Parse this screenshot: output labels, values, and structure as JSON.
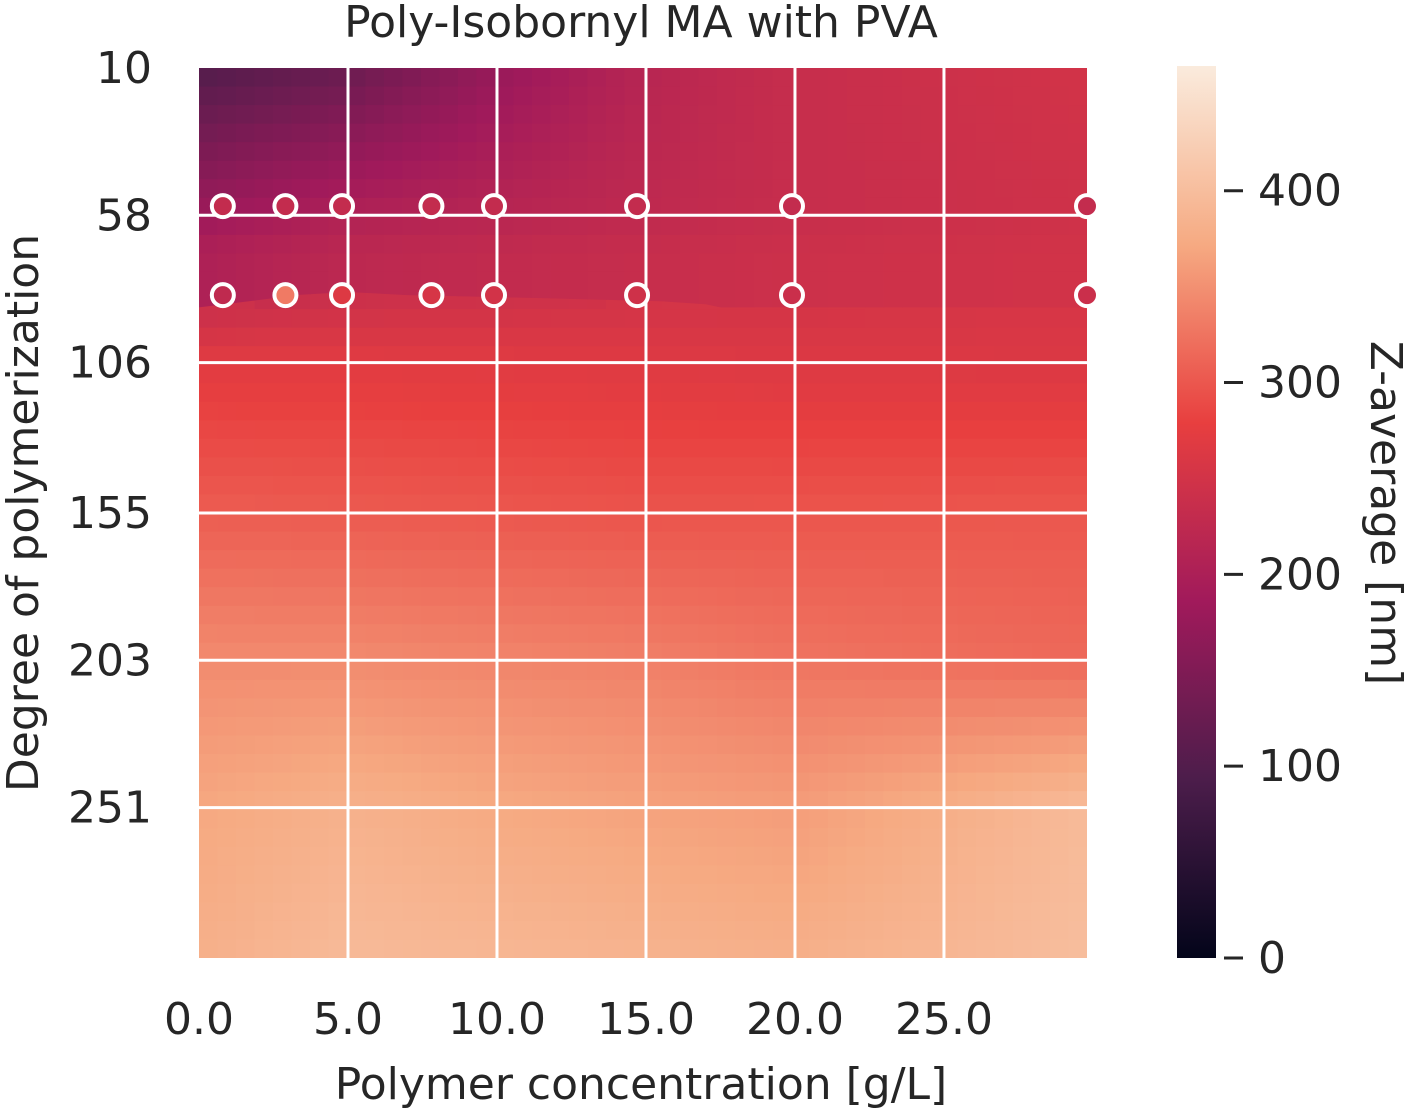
{
  "chart_data": {
    "type": "heatmap",
    "title": "Poly-Isobornyl MA with PVA",
    "xlabel": "Polymer concentration [g/L]",
    "ylabel": "Degree of polymerization",
    "xlim": [
      0,
      29.8
    ],
    "ylim": [
      10,
      300
    ],
    "x_ticks": [
      0,
      5,
      10,
      15,
      20,
      25
    ],
    "x_tick_labels": [
      "0.0",
      "5.0",
      "10.0",
      "15.0",
      "20.0",
      "25.0"
    ],
    "y_ticks": [
      10,
      58,
      106,
      155,
      203,
      251
    ],
    "y_tick_labels": [
      "10",
      "58",
      "106",
      "155",
      "203",
      "251"
    ],
    "y_inverted": true,
    "grid": true,
    "colorbar": {
      "label": "Z-average [nm]",
      "range": [
        0,
        465
      ],
      "ticks": [
        0,
        100,
        200,
        300,
        400
      ],
      "tick_labels": [
        "0",
        "100",
        "200",
        "300",
        "400"
      ],
      "colormap": "rocket",
      "colors": [
        "#03051a",
        "#4c1d4b",
        "#a11a5b",
        "#e83f3f",
        "#f6aa82",
        "#faebdd"
      ]
    },
    "surface": [
      {
        "dp": 10,
        "values": [
          100,
          125,
          175,
          215,
          235,
          250
        ]
      },
      {
        "dp": 58,
        "values": [
          180,
          205,
          215,
          225,
          235,
          245
        ]
      },
      {
        "dp": 106,
        "values": [
          270,
          270,
          268,
          266,
          263,
          262
        ]
      },
      {
        "dp": 155,
        "values": [
          305,
          303,
          300,
          297,
          298,
          300
        ]
      },
      {
        "dp": 203,
        "values": [
          345,
          345,
          340,
          335,
          325,
          315
        ]
      },
      {
        "dp": 251,
        "values": [
          370,
          382,
          372,
          365,
          360,
          395
        ]
      },
      {
        "dp": 300,
        "values": [
          380,
          395,
          390,
          385,
          380,
          400
        ]
      }
    ],
    "surface_x": [
      0,
      5,
      10,
      15,
      20,
      29.8
    ],
    "boundary": {
      "x": [
        0,
        2.5,
        3.2,
        5.0,
        7.0,
        11.5,
        15.5,
        17.0,
        17.5,
        29.8
      ],
      "dp": [
        88,
        85,
        84,
        83,
        84,
        85,
        86,
        87,
        88,
        88
      ]
    },
    "series": [
      {
        "dp": 55,
        "x": [
          0.8,
          2.9,
          4.8,
          7.8,
          9.9,
          14.7,
          19.9,
          29.8
        ],
        "values": [
          230,
          230,
          230,
          230,
          230,
          230,
          230,
          230
        ]
      },
      {
        "dp": 84,
        "x": [
          0.8,
          2.9,
          4.8,
          7.8,
          9.9,
          14.7,
          19.9,
          29.8
        ],
        "values": [
          225,
          330,
          265,
          255,
          250,
          245,
          240,
          240
        ]
      }
    ]
  }
}
